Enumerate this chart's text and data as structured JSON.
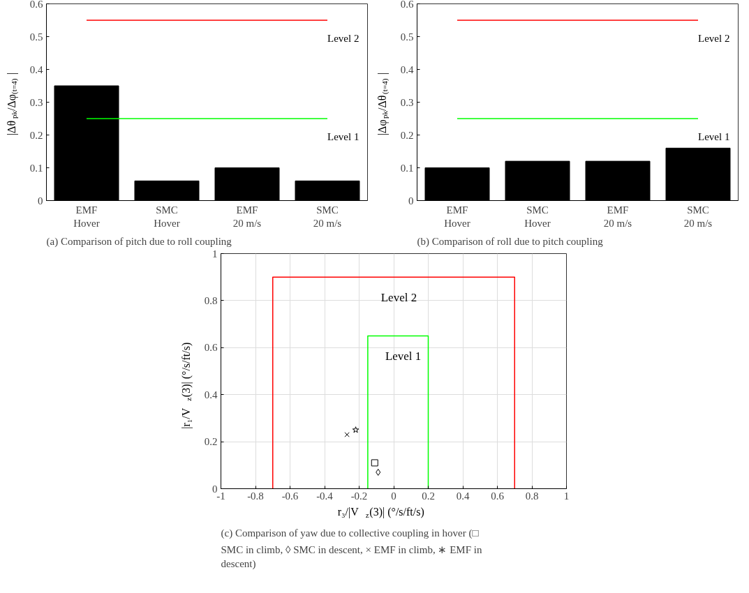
{
  "chart_data": [
    {
      "type": "bar",
      "ylabel": "|Δθ$_{pk}$/Δφ$_{(t=4)}$|",
      "categories": [
        "EMF\nHover",
        "SMC\nHover",
        "EMF\n20 m/s",
        "SMC\n20 m/s"
      ],
      "values": [
        0.35,
        0.06,
        0.1,
        0.06
      ],
      "color": "#000000",
      "ylim": [
        0,
        0.6
      ],
      "yticks": [
        0,
        0.1,
        0.2,
        0.3,
        0.4,
        0.5,
        0.6
      ],
      "grid": false,
      "ref_lines": [
        {
          "axis": "y",
          "value": 0.55,
          "label": "Level 2",
          "color": "#ff0000"
        },
        {
          "axis": "y",
          "value": 0.25,
          "label": "Level 1",
          "color": "#00ff00"
        }
      ],
      "annotations": [
        "(a) Comparison of pitch due to roll coupling"
      ]
    },
    {
      "type": "bar",
      "ylabel": "|Δφ$_{pk}$/Δθ$_{(t=4)}$|",
      "categories": [
        "EMF\nHover",
        "SMC\nHover",
        "EMF\n20 m/s",
        "SMC\n20 m/s"
      ],
      "values": [
        0.1,
        0.12,
        0.12,
        0.16
      ],
      "color": "#000000",
      "ylim": [
        0,
        0.6
      ],
      "yticks": [
        0,
        0.1,
        0.2,
        0.3,
        0.4,
        0.5,
        0.6
      ],
      "grid": false,
      "ref_lines": [
        {
          "axis": "y",
          "value": 0.55,
          "label": "Level 2",
          "color": "#ff0000"
        },
        {
          "axis": "y",
          "value": 0.25,
          "label": "Level 1",
          "color": "#00ff00"
        }
      ],
      "annotations": [
        "(b) Comparison of roll due to pitch coupling"
      ]
    },
    {
      "type": "scatter",
      "xlabel": "r₃/|V$_{z}$(3)| (°/s/ft/s)",
      "ylabel": "|r₁/V$_{z}$(3)| (°/s/ft/s)",
      "xlim": [
        -1,
        1
      ],
      "ylim": [
        0,
        1
      ],
      "xticks": [
        -1,
        -0.8,
        -0.6,
        -0.4,
        -0.2,
        0,
        0.2,
        0.4,
        0.6,
        0.8,
        1
      ],
      "yticks": [
        0,
        0.2,
        0.4,
        0.6,
        0.8,
        1
      ],
      "grid": true,
      "series": [
        {
          "type": "line",
          "name": "Level 2",
          "color": "#ff0000",
          "x": [
            -0.7,
            -0.7,
            0.7,
            0.7
          ],
          "values": [
            0,
            0.9,
            0.9,
            0
          ]
        },
        {
          "type": "line",
          "name": "Level 1",
          "color": "#00ff00",
          "x": [
            -0.15,
            -0.15,
            0.2,
            0.2
          ],
          "values": [
            0,
            0.65,
            0.65,
            0
          ]
        },
        {
          "color": "#000000",
          "marker": "square",
          "x": [
            -0.11
          ],
          "values": [
            0.11
          ]
        },
        {
          "color": "#000000",
          "marker": "diamond",
          "x": [
            -0.09
          ],
          "values": [
            0.07
          ]
        },
        {
          "color": "#000000",
          "marker": "cross",
          "x": [
            -0.27
          ],
          "values": [
            0.23
          ]
        },
        {
          "color": "#000000",
          "marker": "star",
          "x": [
            -0.22
          ],
          "values": [
            0.25
          ]
        }
      ],
      "annotations": [
        "(c) Comparison of yaw due to collective coupling in hover (□ SMC in climb, ◊ SMC in descent, × EMF in climb, ∗ EMF in descent)"
      ]
    }
  ]
}
